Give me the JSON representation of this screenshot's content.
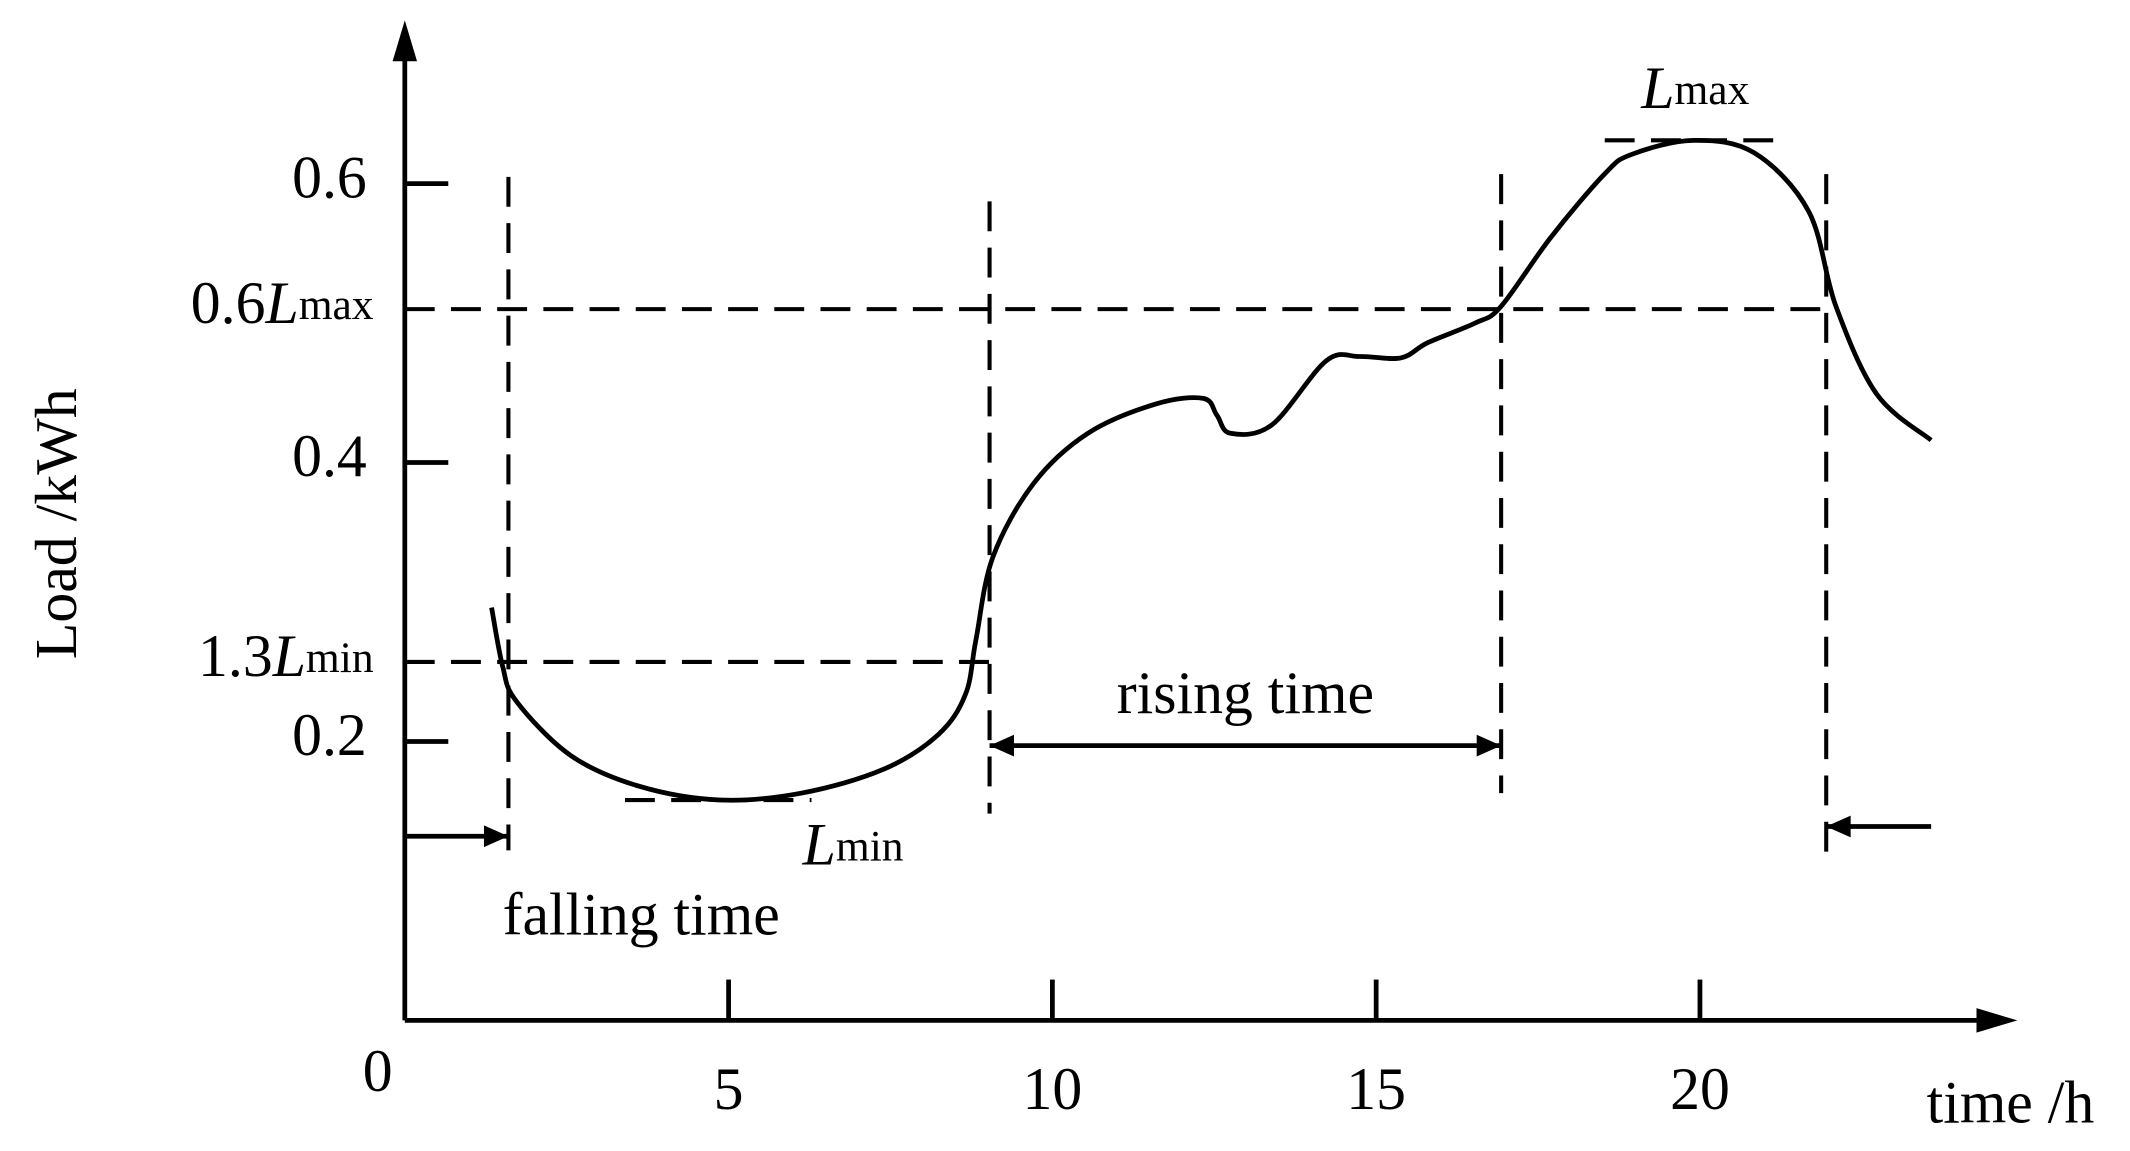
{
  "chart_data": {
    "type": "line",
    "xlabel": "time /h",
    "ylabel": "Load /kWh",
    "x": [
      1.34,
      1.51,
      1.72,
      2.56,
      3.61,
      4.87,
      6.13,
      7.39,
      8.24,
      8.66,
      8.82,
      9.08,
      9.71,
      10.55,
      11.6,
      12.33,
      12.54,
      12.75,
      13.39,
      14.23,
      14.75,
      15.38,
      15.8,
      16.53,
      16.93,
      17.69,
      18.53,
      18.95,
      19.9,
      20.84,
      21.68,
      22.1,
      22.73,
      23.57
    ],
    "series": [
      {
        "color": "#000000",
        "values": [
          0.296,
          0.254,
          0.229,
          0.19,
          0.168,
          0.158,
          0.163,
          0.18,
          0.205,
          0.234,
          0.273,
          0.332,
          0.385,
          0.421,
          0.442,
          0.446,
          0.434,
          0.421,
          0.427,
          0.473,
          0.476,
          0.475,
          0.486,
          0.5,
          0.512,
          0.561,
          0.607,
          0.621,
          0.631,
          0.622,
          0.58,
          0.512,
          0.449,
          0.416
        ]
      }
    ],
    "xlim": [
      0,
      24.9
    ],
    "ylim": [
      0,
      0.717
    ],
    "xticks": [
      0,
      5,
      10,
      15,
      20
    ],
    "yticks": [
      0.2,
      0.4,
      0.6
    ],
    "reference_lines": [
      {
        "value": 0.51,
        "coef": "0.6",
        "symbol": "L",
        "sub": "max"
      },
      {
        "value": 0.257,
        "coef": "1.3",
        "symbol": "L",
        "sub": "min"
      }
    ],
    "extremes": [
      {
        "value": 0.631,
        "x_range": [
          18.53,
          21.37
        ],
        "symbol": "L",
        "sub": "max"
      },
      {
        "value": 0.158,
        "x_range": [
          3.4,
          6.28
        ],
        "symbol": "L",
        "sub": "min"
      }
    ],
    "vlines": [
      1.6,
      9.03,
      16.93,
      21.95
    ],
    "spans": [
      {
        "from": 0,
        "to": 1.6,
        "y": 0.132,
        "label": "falling time"
      },
      {
        "from": 9.03,
        "to": 16.93,
        "y": 0.197,
        "label": "rising time"
      },
      {
        "from": 23.57,
        "to": 21.95,
        "y": 0.139
      }
    ]
  }
}
